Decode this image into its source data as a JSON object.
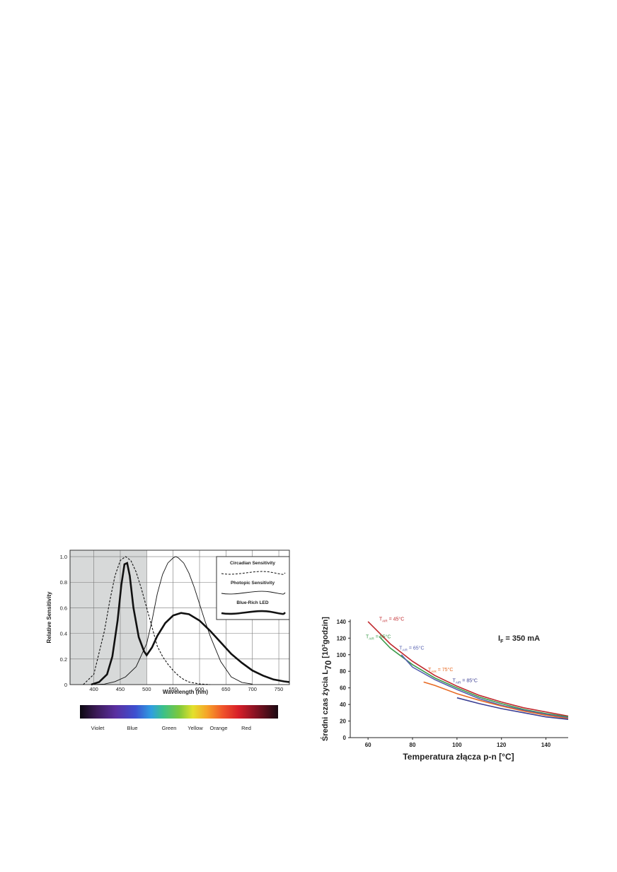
{
  "charts": [
    {
      "type": "line",
      "xlabel": "Wavelength (nm)",
      "ylabel": "Relative Sensitivity",
      "xlim": [
        355,
        770
      ],
      "ylim": [
        0,
        1.05
      ],
      "xticks": [
        400,
        450,
        500,
        550,
        600,
        650,
        700,
        750
      ],
      "yticks": [
        "0",
        "0.2",
        "0.4",
        "0.6",
        "0.8",
        "1.0"
      ],
      "shaded_region": [
        355,
        500
      ],
      "legend_position": "top-right",
      "grid": true,
      "series": [
        {
          "name": "Circadian Sensitivity",
          "style": "dashed",
          "x": [
            380,
            400,
            420,
            430,
            440,
            450,
            460,
            470,
            480,
            490,
            500,
            510,
            520,
            530,
            540,
            550,
            560,
            570,
            580,
            600,
            620
          ],
          "y": [
            0.0,
            0.08,
            0.42,
            0.65,
            0.85,
            0.97,
            1.0,
            0.97,
            0.88,
            0.75,
            0.6,
            0.45,
            0.3,
            0.22,
            0.16,
            0.11,
            0.07,
            0.04,
            0.02,
            0.005,
            0.0
          ]
        },
        {
          "name": "Photopic Sensitivity",
          "style": "thin",
          "x": [
            400,
            420,
            440,
            460,
            480,
            500,
            510,
            520,
            530,
            540,
            550,
            555,
            560,
            570,
            580,
            590,
            600,
            610,
            620,
            640,
            660,
            680,
            700
          ],
          "y": [
            0.0,
            0.004,
            0.023,
            0.06,
            0.14,
            0.32,
            0.5,
            0.71,
            0.86,
            0.95,
            0.99,
            1.0,
            0.99,
            0.95,
            0.87,
            0.76,
            0.63,
            0.5,
            0.38,
            0.18,
            0.06,
            0.017,
            0.004
          ]
        },
        {
          "name": "Blue-Rich LED",
          "style": "thick",
          "x": [
            395,
            410,
            425,
            435,
            445,
            452,
            458,
            463,
            468,
            475,
            485,
            495,
            500,
            510,
            520,
            535,
            550,
            565,
            580,
            600,
            620,
            640,
            660,
            680,
            700,
            720,
            740,
            760,
            770
          ],
          "y": [
            0.0,
            0.02,
            0.08,
            0.22,
            0.5,
            0.78,
            0.94,
            0.95,
            0.85,
            0.6,
            0.37,
            0.26,
            0.23,
            0.29,
            0.38,
            0.48,
            0.54,
            0.56,
            0.55,
            0.5,
            0.42,
            0.33,
            0.24,
            0.17,
            0.11,
            0.07,
            0.04,
            0.025,
            0.02
          ]
        }
      ],
      "legend": [
        "Circadian Sensitivity",
        "Photopic Sensitivity",
        "Blue-Rich LED"
      ],
      "spectrum_labels": [
        "Violet",
        "Blue",
        "Green",
        "Yellow",
        "Orange",
        "Red"
      ]
    },
    {
      "type": "line",
      "xlabel": "Temperatura złącza p-n [°C]",
      "ylabel": "Średni czas życia L",
      "ylabel_sub": "70",
      "ylabel_unit": "[10³godzin]",
      "xlim": [
        52,
        150
      ],
      "ylim": [
        0,
        145
      ],
      "xticks": [
        "60",
        "80",
        "100",
        "120",
        "140"
      ],
      "yticks": [
        "0",
        "20",
        "40",
        "60",
        "80",
        "100",
        "120",
        "140"
      ],
      "annotation": "I",
      "annotation_sub": "F",
      "annotation_value": " = 350 mA",
      "series": [
        {
          "name": "T",
          "name_sub": "AIR",
          "name_value": " = 45°C",
          "color": "#c0282d",
          "x": [
            60,
            70,
            80,
            90,
            100,
            110,
            120,
            130,
            140,
            150
          ],
          "y": [
            140,
            113,
            92,
            75,
            62,
            51,
            43,
            36,
            31,
            26
          ]
        },
        {
          "name": "T",
          "name_sub": "AIR",
          "name_value": " = 55°C",
          "color": "#3a9a4a",
          "x": [
            65,
            70,
            80,
            90,
            100,
            110,
            120,
            130,
            140,
            150
          ],
          "y": [
            122,
            108,
            88,
            72,
            60,
            49,
            41,
            34,
            29,
            25
          ]
        },
        {
          "name": "T",
          "name_sub": "AIR",
          "name_value": " = 65°C",
          "color": "#5560b0",
          "x": [
            75,
            80,
            90,
            100,
            110,
            120,
            130,
            140,
            150
          ],
          "y": [
            100,
            85,
            70,
            58,
            47,
            39,
            33,
            28,
            24
          ]
        },
        {
          "name": "T",
          "name_sub": "AIR",
          "name_value": " = 75°C",
          "color": "#e86a24",
          "x": [
            85,
            90,
            100,
            110,
            120,
            130,
            140,
            150
          ],
          "y": [
            67,
            63,
            53,
            45,
            38,
            32,
            27,
            23
          ]
        },
        {
          "name": "T",
          "name_sub": "AIR",
          "name_value": " = 85°C",
          "color": "#3b3f94",
          "x": [
            100,
            110,
            120,
            130,
            140,
            150
          ],
          "y": [
            48,
            41,
            35,
            30,
            25,
            22
          ]
        }
      ]
    }
  ]
}
